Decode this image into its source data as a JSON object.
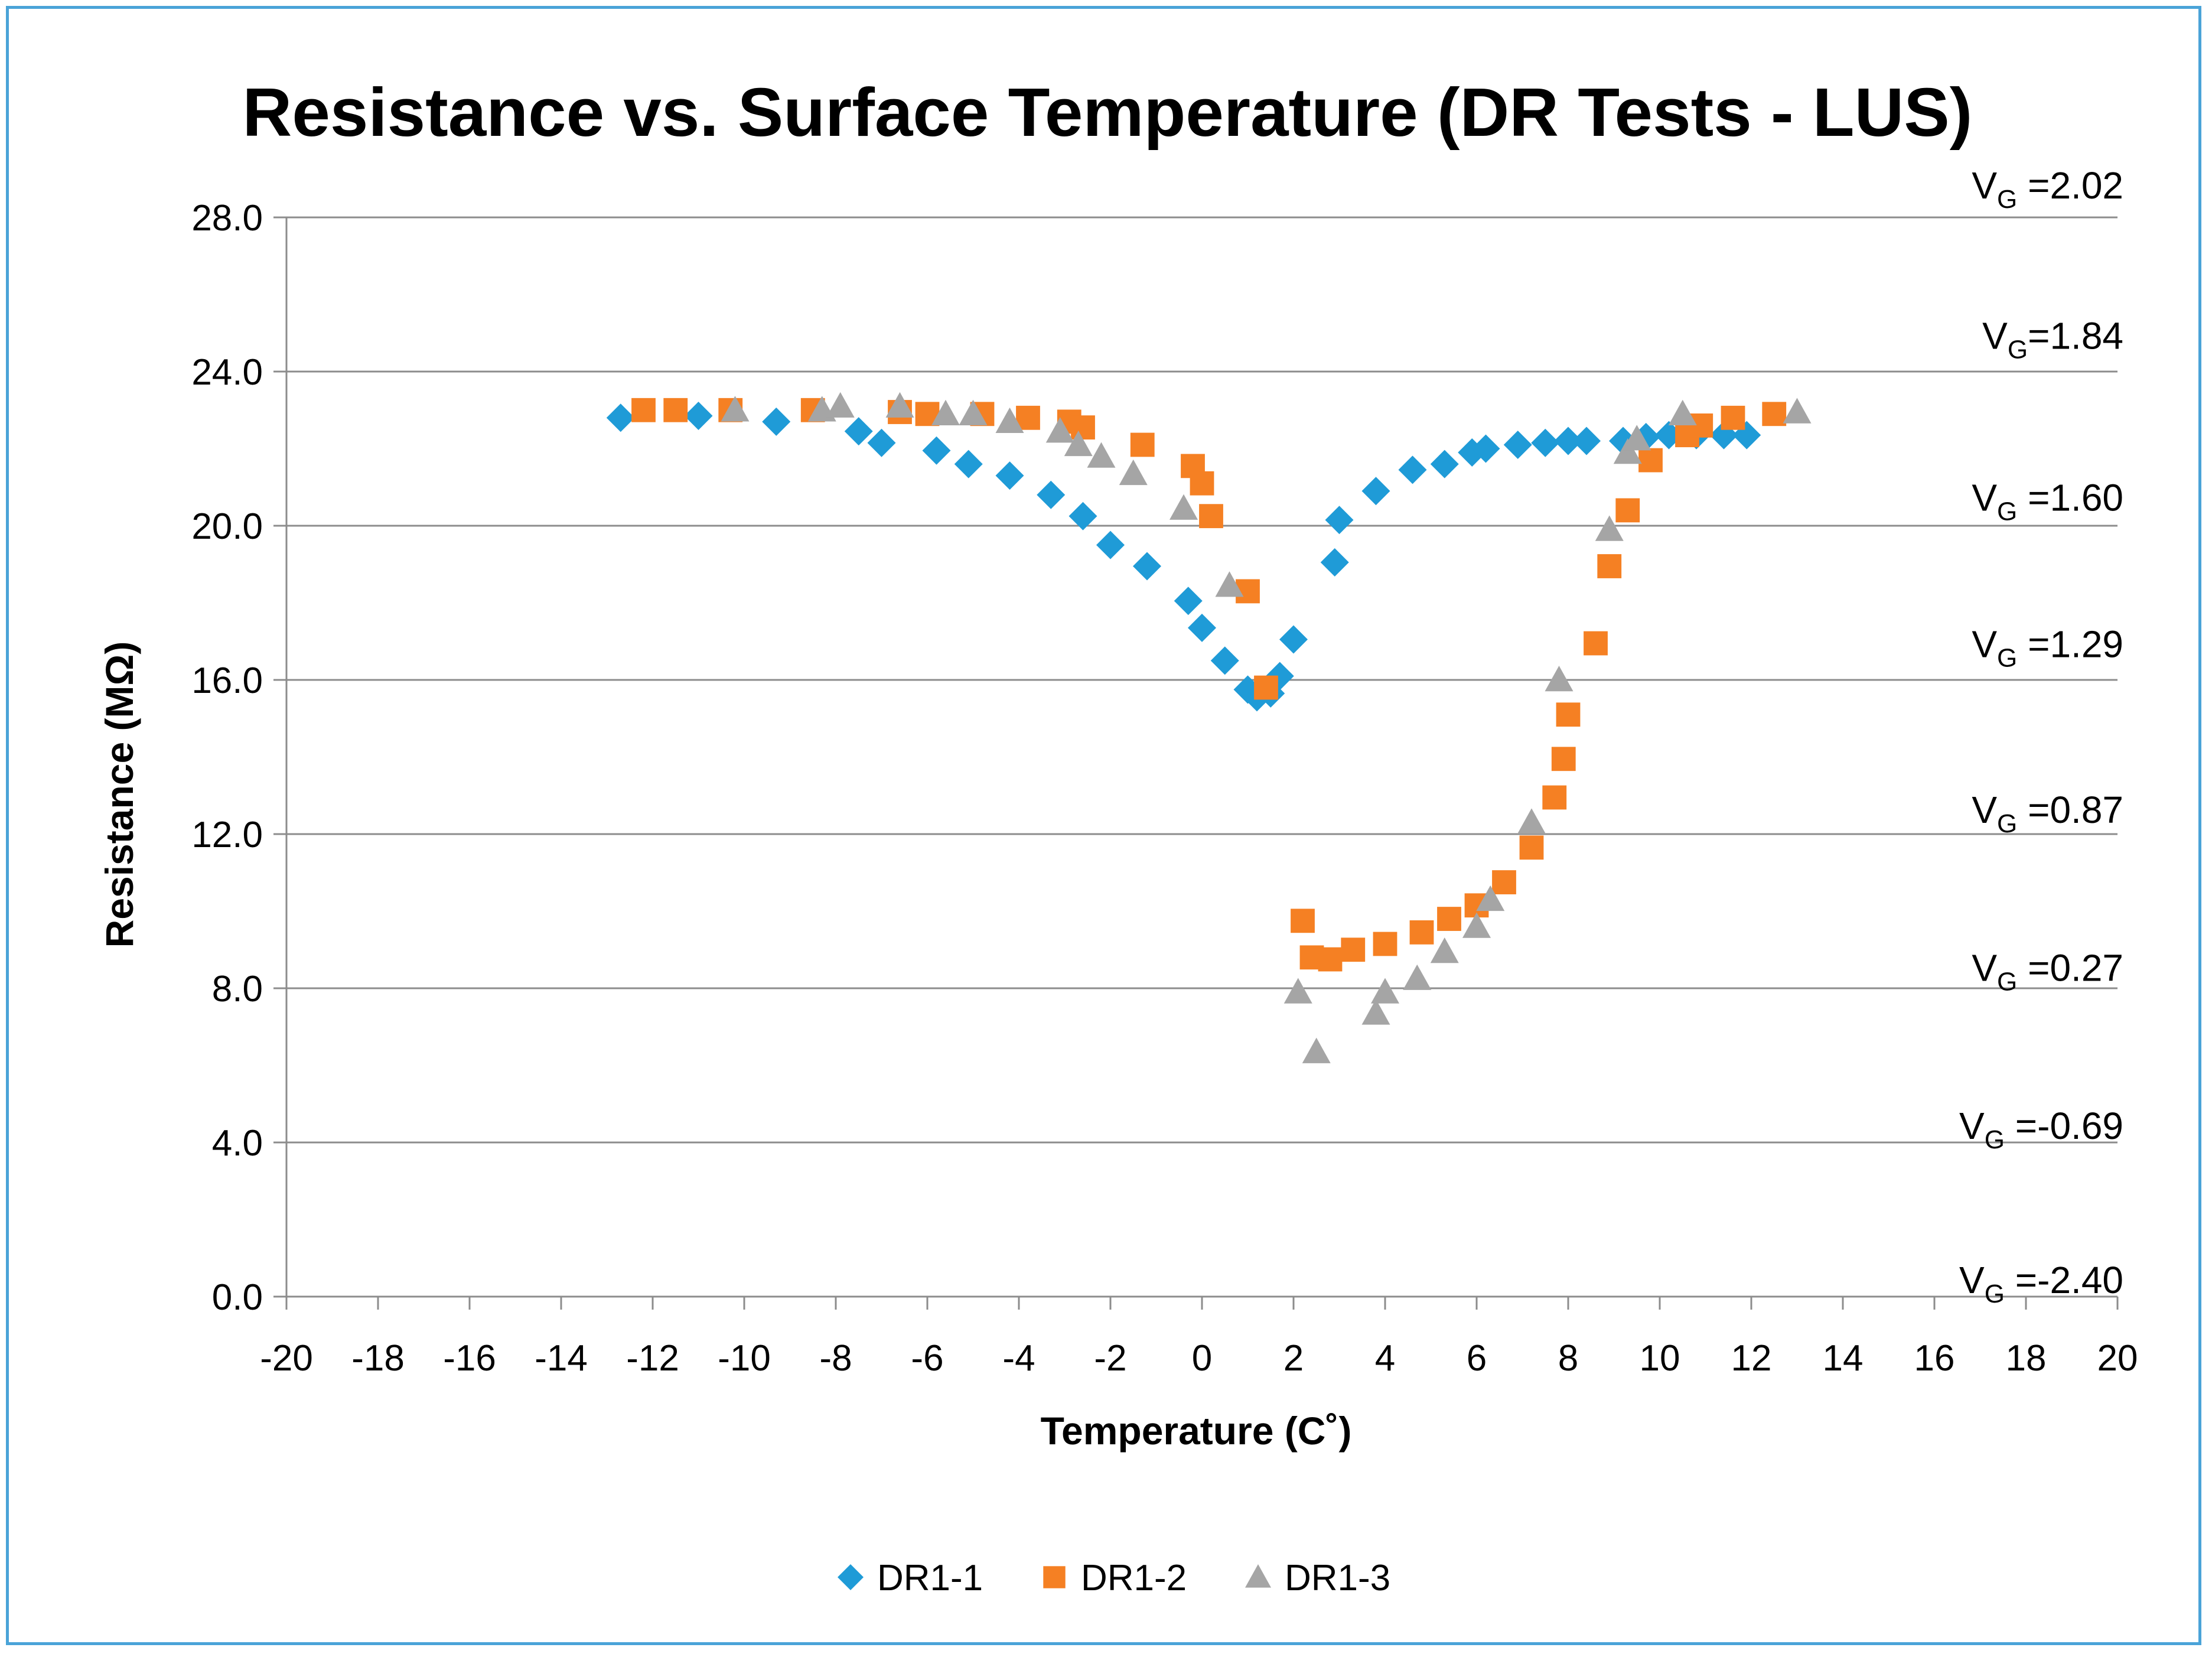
{
  "chart_data": {
    "type": "scatter",
    "title": "Resistance vs. Surface Temperature (DR Tests - LUS)",
    "xlabel": "Temperature (C˚)",
    "ylabel": "Resistance (MΩ)",
    "xlim": [
      -20,
      20
    ],
    "ylim": [
      0,
      28
    ],
    "x_ticks": [
      -20,
      -18,
      -16,
      -14,
      -12,
      -10,
      -8,
      -6,
      -4,
      -2,
      0,
      2,
      4,
      6,
      8,
      10,
      12,
      14,
      16,
      18,
      20
    ],
    "y_ticks": [
      0,
      4,
      8,
      12,
      16,
      20,
      24,
      28
    ],
    "y_tick_labels": [
      "0.0",
      "4.0",
      "8.0",
      "12.0",
      "16.0",
      "20.0",
      "24.0",
      "28.0"
    ],
    "grid": "horizontal",
    "legend_position": "bottom",
    "annotations": [
      {
        "prefix": "V",
        "sub": "G",
        "text": " =2.02",
        "y": 28.8
      },
      {
        "prefix": "V",
        "sub": "G",
        "text": "=1.84",
        "y": 24.9
      },
      {
        "prefix": "V",
        "sub": "G",
        "text": " =1.60",
        "y": 20.7
      },
      {
        "prefix": "V",
        "sub": "G",
        "text": " =1.29",
        "y": 16.9
      },
      {
        "prefix": "V",
        "sub": "G",
        "text": " =0.87",
        "y": 12.6
      },
      {
        "prefix": "V",
        "sub": "G",
        "text": " =0.27",
        "y": 8.5
      },
      {
        "prefix": "V",
        "sub": "G",
        "text": " =-0.69",
        "y": 4.4
      },
      {
        "prefix": "V",
        "sub": "G",
        "text": " =-2.40",
        "y": 0.4
      }
    ],
    "series": [
      {
        "name": "DR1-1",
        "marker": "diamond",
        "color": "#1f9bd7",
        "points": [
          [
            -12.7,
            22.8
          ],
          [
            -11,
            22.85
          ],
          [
            -9.3,
            22.7
          ],
          [
            -7.5,
            22.45
          ],
          [
            -7,
            22.15
          ],
          [
            -5.8,
            21.95
          ],
          [
            -5.1,
            21.6
          ],
          [
            -4.2,
            21.3
          ],
          [
            -3.3,
            20.8
          ],
          [
            -2.6,
            20.25
          ],
          [
            -2,
            19.5
          ],
          [
            -1.2,
            18.95
          ],
          [
            -0.3,
            18.05
          ],
          [
            0,
            17.35
          ],
          [
            0.5,
            16.5
          ],
          [
            1,
            15.75
          ],
          [
            1.2,
            15.55
          ],
          [
            1.5,
            15.65
          ],
          [
            1.7,
            16.1
          ],
          [
            2,
            17.05
          ],
          [
            2.9,
            19.05
          ],
          [
            3,
            20.15
          ],
          [
            3.8,
            20.9
          ],
          [
            4.6,
            21.45
          ],
          [
            5.3,
            21.6
          ],
          [
            5.9,
            21.9
          ],
          [
            6.2,
            22.0
          ],
          [
            6.9,
            22.1
          ],
          [
            7.5,
            22.15
          ],
          [
            8,
            22.2
          ],
          [
            8.4,
            22.2
          ],
          [
            9.2,
            22.2
          ],
          [
            9.7,
            22.3
          ],
          [
            10.2,
            22.35
          ],
          [
            10.8,
            22.35
          ],
          [
            11.4,
            22.35
          ],
          [
            11.9,
            22.35
          ]
        ]
      },
      {
        "name": "DR1-2",
        "marker": "square",
        "color": "#f58023",
        "points": [
          [
            -12.2,
            23.0
          ],
          [
            -11.5,
            23.0
          ],
          [
            -10.3,
            23.0
          ],
          [
            -8.5,
            23.0
          ],
          [
            -6.6,
            22.95
          ],
          [
            -6,
            22.9
          ],
          [
            -4.8,
            22.9
          ],
          [
            -3.8,
            22.8
          ],
          [
            -2.9,
            22.7
          ],
          [
            -2.6,
            22.55
          ],
          [
            -1.3,
            22.1
          ],
          [
            -0.2,
            21.55
          ],
          [
            0,
            21.1
          ],
          [
            0.2,
            20.25
          ],
          [
            1,
            18.3
          ],
          [
            1.4,
            15.8
          ],
          [
            2.2,
            9.75
          ],
          [
            2.4,
            8.8
          ],
          [
            2.8,
            8.75
          ],
          [
            3.3,
            9.0
          ],
          [
            4,
            9.15
          ],
          [
            4.8,
            9.45
          ],
          [
            5.4,
            9.8
          ],
          [
            6,
            10.15
          ],
          [
            6.6,
            10.75
          ],
          [
            7.2,
            11.65
          ],
          [
            7.7,
            12.95
          ],
          [
            7.9,
            13.95
          ],
          [
            8,
            15.1
          ],
          [
            8.6,
            16.95
          ],
          [
            8.9,
            18.95
          ],
          [
            9.3,
            20.4
          ],
          [
            9.8,
            21.7
          ],
          [
            10.6,
            22.35
          ],
          [
            10.9,
            22.6
          ],
          [
            11.6,
            22.8
          ],
          [
            12.5,
            22.9
          ]
        ]
      },
      {
        "name": "DR1-3",
        "marker": "triangle",
        "color": "#a5a5a5",
        "points": [
          [
            -10.2,
            23.0
          ],
          [
            -8.3,
            23.0
          ],
          [
            -7.9,
            23.1
          ],
          [
            -6.6,
            23.1
          ],
          [
            -5.6,
            22.9
          ],
          [
            -5,
            22.9
          ],
          [
            -4.2,
            22.7
          ],
          [
            -3.1,
            22.45
          ],
          [
            -2.7,
            22.1
          ],
          [
            -2.2,
            21.8
          ],
          [
            -1.5,
            21.35
          ],
          [
            -0.4,
            20.45
          ],
          [
            0.6,
            18.45
          ],
          [
            2.1,
            7.9
          ],
          [
            2.5,
            6.35
          ],
          [
            3.8,
            7.35
          ],
          [
            4,
            7.9
          ],
          [
            4.7,
            8.25
          ],
          [
            5.3,
            8.95
          ],
          [
            6,
            9.6
          ],
          [
            6.3,
            10.3
          ],
          [
            7.2,
            12.3
          ],
          [
            7.8,
            16.0
          ],
          [
            8.9,
            19.9
          ],
          [
            9.3,
            21.9
          ],
          [
            9.5,
            22.25
          ],
          [
            10.5,
            22.9
          ],
          [
            13,
            22.95
          ]
        ]
      }
    ]
  }
}
